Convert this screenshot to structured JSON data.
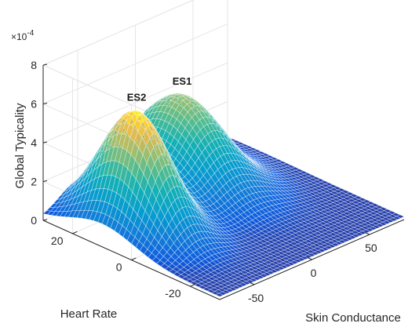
{
  "chart_data": {
    "type": "surface",
    "title": "",
    "xlabel": "Skin Conductance",
    "ylabel": "Heart Rate",
    "zlabel": "Global Typicality",
    "z_exponent_label": "×10",
    "z_exponent_power": "-4",
    "xlim": [
      -80,
      80
    ],
    "ylim": [
      -30,
      30
    ],
    "zlim": [
      0,
      8
    ],
    "x_ticks": [
      -50,
      0,
      50
    ],
    "x_tick_labels": [
      "-50",
      "0",
      "50"
    ],
    "y_ticks": [
      -20,
      0,
      20
    ],
    "y_tick_labels": [
      "-20",
      "0",
      "20"
    ],
    "z_ticks": [
      0,
      2,
      4,
      6,
      8
    ],
    "z_tick_labels": [
      "0",
      "2",
      "4",
      "6",
      "8"
    ],
    "z_scale": 0.0001,
    "grid": true,
    "colormap": "parula",
    "baseline": 0.15,
    "peaks": [
      {
        "label": "ES2",
        "x": -50,
        "y": 10,
        "height": 6.0,
        "sigma_x": 16,
        "sigma_y": 11
      },
      {
        "label": "ES1",
        "x": 15,
        "y": 20,
        "height": 4.5,
        "sigma_x": 22,
        "sigma_y": 13
      }
    ]
  }
}
